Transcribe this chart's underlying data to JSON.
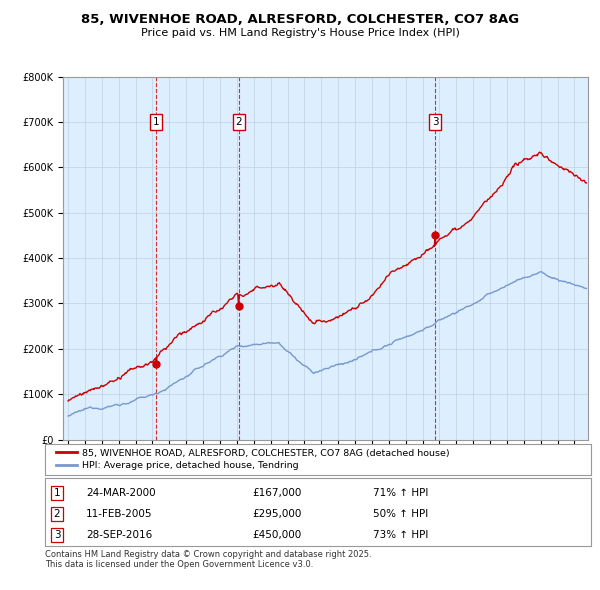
{
  "title": "85, WIVENHOE ROAD, ALRESFORD, COLCHESTER, CO7 8AG",
  "subtitle": "Price paid vs. HM Land Registry's House Price Index (HPI)",
  "sales": [
    {
      "label": "1",
      "date_num": 2000.23,
      "price": 167000,
      "hpi_pct": 71,
      "date_str": "24-MAR-2000"
    },
    {
      "label": "2",
      "date_num": 2005.12,
      "price": 295000,
      "hpi_pct": 50,
      "date_str": "11-FEB-2005"
    },
    {
      "label": "3",
      "date_num": 2016.74,
      "price": 450000,
      "hpi_pct": 73,
      "date_str": "28-SEP-2016"
    }
  ],
  "legend_red": "85, WIVENHOE ROAD, ALRESFORD, COLCHESTER, CO7 8AG (detached house)",
  "legend_blue": "HPI: Average price, detached house, Tendring",
  "footer": "Contains HM Land Registry data © Crown copyright and database right 2025.\nThis data is licensed under the Open Government Licence v3.0.",
  "red_color": "#cc0000",
  "blue_color": "#7799cc",
  "background_color": "#ddeeff",
  "ylim": [
    0,
    800000
  ],
  "xlim_start": 1994.7,
  "xlim_end": 2025.8,
  "table_rows": [
    [
      "1",
      "24-MAR-2000",
      "£167,000",
      "71% ↑ HPI"
    ],
    [
      "2",
      "11-FEB-2005",
      "£295,000",
      "50% ↑ HPI"
    ],
    [
      "3",
      "28-SEP-2016",
      "£450,000",
      "73% ↑ HPI"
    ]
  ]
}
